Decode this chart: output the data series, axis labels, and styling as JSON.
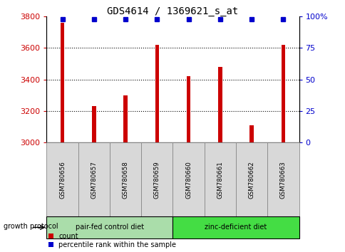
{
  "title": "GDS4614 / 1369621_s_at",
  "samples": [
    "GSM780656",
    "GSM780657",
    "GSM780658",
    "GSM780659",
    "GSM780660",
    "GSM780661",
    "GSM780662",
    "GSM780663"
  ],
  "counts": [
    3760,
    3230,
    3300,
    3620,
    3420,
    3480,
    3110,
    3620
  ],
  "percentile_ranks": [
    98,
    98,
    98,
    98,
    98,
    98,
    98,
    98
  ],
  "ylim_left": [
    3000,
    3800
  ],
  "ylim_right": [
    0,
    100
  ],
  "yticks_left": [
    3000,
    3200,
    3400,
    3600,
    3800
  ],
  "yticks_right": [
    0,
    25,
    50,
    75,
    100
  ],
  "ytick_right_labels": [
    "0",
    "25",
    "50",
    "75",
    "100%"
  ],
  "bar_color": "#cc0000",
  "dot_color": "#0000cc",
  "bar_width": 0.12,
  "group1_label": "pair-fed control diet",
  "group2_label": "zinc-deficient diet",
  "group1_color": "#aaddaa",
  "group2_color": "#44dd44",
  "group_label_prefix": "growth protocol",
  "legend_count_label": "count",
  "legend_percentile_label": "percentile rank within the sample",
  "plot_bg_color": "#ffffff",
  "tick_label_color_left": "#cc0000",
  "tick_label_color_right": "#0000cc",
  "grid_color": "#000000",
  "title_fontsize": 10,
  "tick_fontsize": 8
}
